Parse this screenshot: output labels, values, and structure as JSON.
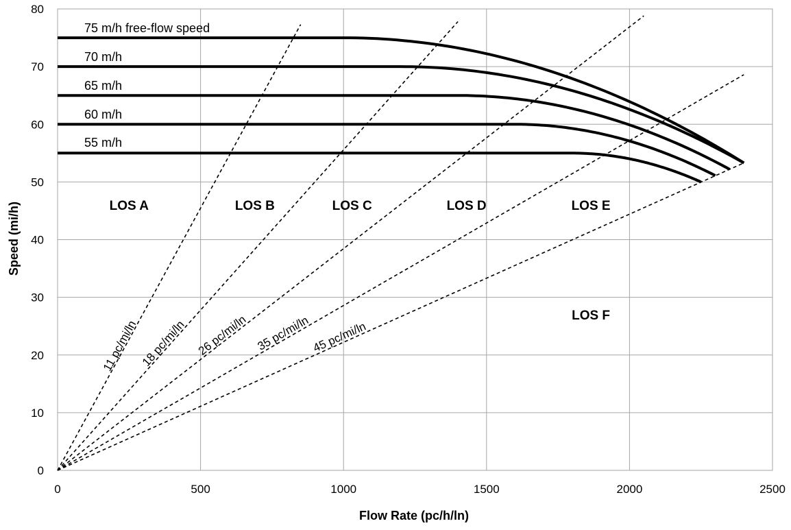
{
  "chart_data": {
    "type": "line",
    "title": "",
    "xlabel": "Flow Rate (pc/h/ln)",
    "ylabel": "Speed (mi/h)",
    "xlim": [
      0,
      2500
    ],
    "ylim": [
      0,
      80
    ],
    "xticks": [
      0,
      500,
      1000,
      1500,
      2000,
      2500
    ],
    "yticks": [
      0,
      10,
      20,
      30,
      40,
      50,
      60,
      70,
      80
    ],
    "grid": true,
    "speed_flow_curves": [
      {
        "label": "75 m/h free-flow speed",
        "ffs": 75,
        "breakpoint": 1000,
        "capacity": 2400,
        "speed_at_capacity": 53.3
      },
      {
        "label": "70 m/h",
        "ffs": 70,
        "breakpoint": 1200,
        "capacity": 2400,
        "speed_at_capacity": 53.3
      },
      {
        "label": "65 m/h",
        "ffs": 65,
        "breakpoint": 1400,
        "capacity": 2350,
        "speed_at_capacity": 52.2
      },
      {
        "label": "60 m/h",
        "ffs": 60,
        "breakpoint": 1600,
        "capacity": 2300,
        "speed_at_capacity": 51.1
      },
      {
        "label": "55 m/h",
        "ffs": 55,
        "breakpoint": 1800,
        "capacity": 2250,
        "speed_at_capacity": 50.0
      }
    ],
    "density_lines": [
      {
        "label": "11 pc/mi/ln",
        "density": 11,
        "x_end": 850,
        "y_end": 77.3
      },
      {
        "label": "18 pc/mi/ln",
        "density": 18,
        "x_end": 1400,
        "y_end": 77.8
      },
      {
        "label": "26 pc/mi/ln",
        "density": 26,
        "x_end": 2050,
        "y_end": 78.8
      },
      {
        "label": "35 pc/mi/ln",
        "density": 35,
        "x_end": 2400,
        "y_end": 68.6
      },
      {
        "label": "45 pc/mi/ln",
        "density": 45,
        "x_end": 2400,
        "y_end": 53.3
      }
    ],
    "regions": [
      {
        "label": "LOS A",
        "x": 250,
        "y": 46
      },
      {
        "label": "LOS B",
        "x": 690,
        "y": 46
      },
      {
        "label": "LOS C",
        "x": 1030,
        "y": 46
      },
      {
        "label": "LOS D",
        "x": 1430,
        "y": 46
      },
      {
        "label": "LOS E",
        "x": 1865,
        "y": 46
      },
      {
        "label": "LOS F",
        "x": 1865,
        "y": 27
      }
    ]
  }
}
